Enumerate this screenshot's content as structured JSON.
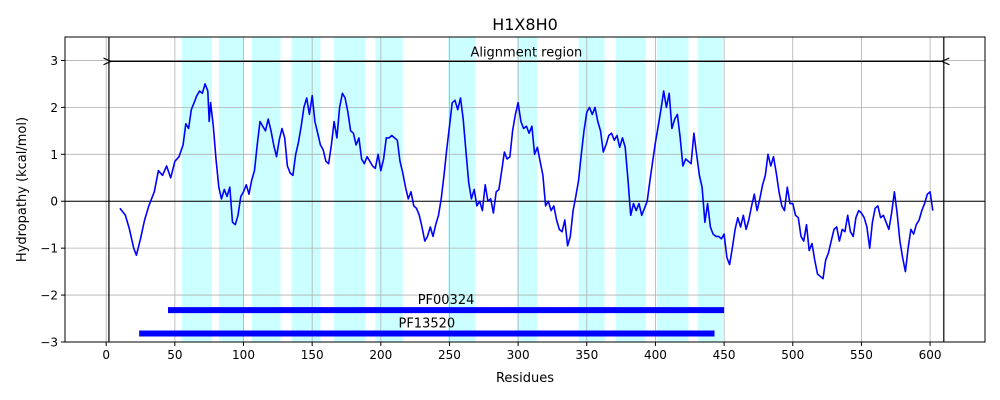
{
  "chart_data": {
    "type": "line",
    "title": "H1X8H0",
    "xlabel": "Residues",
    "ylabel": "Hydropathy (kcal/mol)",
    "xlim": [
      -30,
      640
    ],
    "ylim": [
      -3,
      3.5
    ],
    "xticks": [
      0,
      50,
      100,
      150,
      200,
      250,
      300,
      350,
      400,
      450,
      500,
      550,
      600
    ],
    "yticks": [
      -3,
      -2,
      -1,
      0,
      1,
      2,
      3
    ],
    "grid": true,
    "colors": {
      "line": "#0000ff",
      "tm_band": "#ccffff",
      "domain_bar": "#0000ff",
      "vline": "#000000",
      "zero_line": "#000000"
    },
    "vlines": [
      2,
      610
    ],
    "alignment_region": {
      "label": "Alignment region",
      "start": 2,
      "end": 610,
      "y": 2.98
    },
    "tm_segments": [
      [
        55,
        77
      ],
      [
        82,
        100
      ],
      [
        106,
        127
      ],
      [
        135,
        156
      ],
      [
        166,
        189
      ],
      [
        196,
        216
      ],
      [
        249,
        269
      ],
      [
        299,
        314
      ],
      [
        344,
        363
      ],
      [
        371,
        393
      ],
      [
        401,
        424
      ],
      [
        431,
        449
      ]
    ],
    "domains": [
      {
        "label": "PF00324",
        "start": 45,
        "end": 450,
        "y": -2.32
      },
      {
        "label": "PF13520",
        "start": 24,
        "end": 443,
        "y": -2.82
      }
    ],
    "series": [
      {
        "points": [
          [
            10,
            -0.15
          ],
          [
            14,
            -0.3
          ],
          [
            17,
            -0.6
          ],
          [
            20,
            -1.0
          ],
          [
            22,
            -1.15
          ],
          [
            25,
            -0.8
          ],
          [
            28,
            -0.4
          ],
          [
            31,
            -0.1
          ],
          [
            35,
            0.2
          ],
          [
            38,
            0.65
          ],
          [
            41,
            0.55
          ],
          [
            44,
            0.75
          ],
          [
            47,
            0.5
          ],
          [
            50,
            0.85
          ],
          [
            53,
            0.95
          ],
          [
            56,
            1.2
          ],
          [
            58,
            1.65
          ],
          [
            60,
            1.55
          ],
          [
            62,
            1.95
          ],
          [
            64,
            2.1
          ],
          [
            66,
            2.25
          ],
          [
            68,
            2.35
          ],
          [
            70,
            2.3
          ],
          [
            72,
            2.5
          ],
          [
            74,
            2.35
          ],
          [
            75,
            1.7
          ],
          [
            76,
            2.1
          ],
          [
            78,
            1.6
          ],
          [
            80,
            0.9
          ],
          [
            82,
            0.3
          ],
          [
            84,
            0.05
          ],
          [
            86,
            0.25
          ],
          [
            88,
            0.1
          ],
          [
            90,
            0.3
          ],
          [
            92,
            -0.45
          ],
          [
            94,
            -0.5
          ],
          [
            96,
            -0.3
          ],
          [
            98,
            0.1
          ],
          [
            100,
            0.2
          ],
          [
            102,
            0.35
          ],
          [
            104,
            0.15
          ],
          [
            106,
            0.45
          ],
          [
            108,
            0.65
          ],
          [
            110,
            1.2
          ],
          [
            112,
            1.7
          ],
          [
            114,
            1.6
          ],
          [
            116,
            1.5
          ],
          [
            118,
            1.75
          ],
          [
            120,
            1.5
          ],
          [
            122,
            1.2
          ],
          [
            124,
            0.95
          ],
          [
            126,
            1.3
          ],
          [
            128,
            1.55
          ],
          [
            130,
            1.35
          ],
          [
            132,
            0.75
          ],
          [
            134,
            0.6
          ],
          [
            136,
            0.55
          ],
          [
            138,
            1.0
          ],
          [
            140,
            1.25
          ],
          [
            142,
            1.6
          ],
          [
            144,
            2.0
          ],
          [
            146,
            2.2
          ],
          [
            148,
            1.85
          ],
          [
            150,
            2.25
          ],
          [
            152,
            1.7
          ],
          [
            154,
            1.45
          ],
          [
            156,
            1.2
          ],
          [
            158,
            1.1
          ],
          [
            160,
            0.85
          ],
          [
            162,
            0.8
          ],
          [
            164,
            1.2
          ],
          [
            166,
            1.7
          ],
          [
            168,
            1.35
          ],
          [
            170,
            2.0
          ],
          [
            172,
            2.3
          ],
          [
            174,
            2.2
          ],
          [
            176,
            1.9
          ],
          [
            178,
            1.5
          ],
          [
            180,
            1.45
          ],
          [
            182,
            1.2
          ],
          [
            184,
            1.35
          ],
          [
            186,
            0.9
          ],
          [
            188,
            0.8
          ],
          [
            190,
            0.95
          ],
          [
            192,
            0.85
          ],
          [
            194,
            0.75
          ],
          [
            196,
            0.7
          ],
          [
            198,
            1.0
          ],
          [
            200,
            0.65
          ],
          [
            202,
            0.9
          ],
          [
            204,
            1.35
          ],
          [
            206,
            1.35
          ],
          [
            208,
            1.4
          ],
          [
            210,
            1.35
          ],
          [
            212,
            1.3
          ],
          [
            214,
            0.85
          ],
          [
            216,
            0.6
          ],
          [
            218,
            0.3
          ],
          [
            220,
            0.05
          ],
          [
            222,
            0.2
          ],
          [
            224,
            -0.1
          ],
          [
            226,
            -0.15
          ],
          [
            228,
            -0.3
          ],
          [
            230,
            -0.55
          ],
          [
            232,
            -0.85
          ],
          [
            234,
            -0.75
          ],
          [
            236,
            -0.55
          ],
          [
            238,
            -0.75
          ],
          [
            240,
            -0.5
          ],
          [
            242,
            -0.3
          ],
          [
            244,
            0.05
          ],
          [
            246,
            0.55
          ],
          [
            248,
            1.1
          ],
          [
            250,
            1.6
          ],
          [
            252,
            2.1
          ],
          [
            254,
            2.15
          ],
          [
            256,
            1.95
          ],
          [
            258,
            2.2
          ],
          [
            260,
            1.75
          ],
          [
            262,
            1.05
          ],
          [
            264,
            0.4
          ],
          [
            266,
            0.05
          ],
          [
            268,
            0.25
          ],
          [
            270,
            -0.1
          ],
          [
            272,
            0.0
          ],
          [
            274,
            -0.2
          ],
          [
            276,
            0.35
          ],
          [
            278,
            0.0
          ],
          [
            280,
            0.05
          ],
          [
            282,
            -0.25
          ],
          [
            284,
            0.2
          ],
          [
            286,
            0.25
          ],
          [
            288,
            0.65
          ],
          [
            290,
            1.05
          ],
          [
            292,
            0.9
          ],
          [
            294,
            0.95
          ],
          [
            296,
            1.5
          ],
          [
            298,
            1.85
          ],
          [
            300,
            2.1
          ],
          [
            302,
            1.7
          ],
          [
            304,
            1.55
          ],
          [
            306,
            1.6
          ],
          [
            308,
            1.45
          ],
          [
            310,
            1.6
          ],
          [
            312,
            1.0
          ],
          [
            314,
            1.15
          ],
          [
            316,
            0.85
          ],
          [
            318,
            0.55
          ],
          [
            320,
            -0.1
          ],
          [
            322,
            0.0
          ],
          [
            324,
            -0.2
          ],
          [
            326,
            -0.1
          ],
          [
            328,
            -0.4
          ],
          [
            330,
            -0.6
          ],
          [
            332,
            -0.65
          ],
          [
            334,
            -0.4
          ],
          [
            336,
            -0.95
          ],
          [
            338,
            -0.75
          ],
          [
            340,
            -0.2
          ],
          [
            342,
            0.1
          ],
          [
            344,
            0.45
          ],
          [
            346,
            1.0
          ],
          [
            348,
            1.5
          ],
          [
            350,
            1.9
          ],
          [
            352,
            2.0
          ],
          [
            354,
            1.85
          ],
          [
            356,
            2.0
          ],
          [
            358,
            1.7
          ],
          [
            360,
            1.5
          ],
          [
            362,
            1.05
          ],
          [
            364,
            1.2
          ],
          [
            366,
            1.4
          ],
          [
            368,
            1.45
          ],
          [
            370,
            1.3
          ],
          [
            372,
            1.4
          ],
          [
            374,
            1.15
          ],
          [
            376,
            1.35
          ],
          [
            378,
            1.15
          ],
          [
            380,
            0.45
          ],
          [
            382,
            -0.3
          ],
          [
            384,
            -0.05
          ],
          [
            386,
            -0.2
          ],
          [
            388,
            -0.05
          ],
          [
            390,
            -0.3
          ],
          [
            392,
            -0.15
          ],
          [
            394,
            0.0
          ],
          [
            396,
            0.45
          ],
          [
            398,
            0.85
          ],
          [
            400,
            1.25
          ],
          [
            402,
            1.6
          ],
          [
            404,
            1.95
          ],
          [
            406,
            2.35
          ],
          [
            408,
            2.0
          ],
          [
            410,
            2.3
          ],
          [
            412,
            1.55
          ],
          [
            414,
            1.75
          ],
          [
            416,
            1.85
          ],
          [
            418,
            1.35
          ],
          [
            420,
            0.75
          ],
          [
            422,
            0.9
          ],
          [
            424,
            0.85
          ],
          [
            426,
            0.8
          ],
          [
            428,
            1.45
          ],
          [
            430,
            1.0
          ],
          [
            432,
            0.55
          ],
          [
            434,
            0.3
          ],
          [
            436,
            -0.45
          ],
          [
            438,
            -0.05
          ],
          [
            440,
            -0.55
          ],
          [
            442,
            -0.7
          ],
          [
            444,
            -0.75
          ],
          [
            446,
            -0.75
          ],
          [
            448,
            -0.8
          ],
          [
            450,
            -0.7
          ],
          [
            452,
            -1.2
          ],
          [
            454,
            -1.35
          ],
          [
            456,
            -1.0
          ],
          [
            458,
            -0.6
          ],
          [
            460,
            -0.35
          ],
          [
            462,
            -0.55
          ],
          [
            464,
            -0.3
          ],
          [
            466,
            -0.6
          ],
          [
            468,
            -0.4
          ],
          [
            470,
            -0.1
          ],
          [
            472,
            0.15
          ],
          [
            474,
            -0.2
          ],
          [
            476,
            0.05
          ],
          [
            478,
            0.35
          ],
          [
            480,
            0.55
          ],
          [
            482,
            1.0
          ],
          [
            484,
            0.75
          ],
          [
            486,
            0.95
          ],
          [
            488,
            0.6
          ],
          [
            490,
            0.2
          ],
          [
            492,
            -0.1
          ],
          [
            494,
            -0.2
          ],
          [
            496,
            0.3
          ],
          [
            498,
            -0.05
          ],
          [
            500,
            -0.05
          ],
          [
            502,
            -0.3
          ],
          [
            504,
            -0.35
          ],
          [
            506,
            -0.75
          ],
          [
            508,
            -0.85
          ],
          [
            510,
            -0.5
          ],
          [
            512,
            -1.05
          ],
          [
            514,
            -0.9
          ],
          [
            516,
            -1.25
          ],
          [
            518,
            -1.55
          ],
          [
            520,
            -1.6
          ],
          [
            522,
            -1.65
          ],
          [
            524,
            -1.25
          ],
          [
            526,
            -1.1
          ],
          [
            528,
            -0.85
          ],
          [
            530,
            -0.6
          ],
          [
            532,
            -0.55
          ],
          [
            534,
            -0.85
          ],
          [
            536,
            -0.6
          ],
          [
            538,
            -0.65
          ],
          [
            540,
            -0.3
          ],
          [
            542,
            -0.65
          ],
          [
            544,
            -0.75
          ],
          [
            546,
            -0.35
          ],
          [
            548,
            -0.2
          ],
          [
            550,
            -0.25
          ],
          [
            552,
            -0.35
          ],
          [
            554,
            -0.55
          ],
          [
            556,
            -1.0
          ],
          [
            558,
            -0.45
          ],
          [
            560,
            -0.15
          ],
          [
            562,
            -0.1
          ],
          [
            564,
            -0.35
          ],
          [
            566,
            -0.3
          ],
          [
            568,
            -0.45
          ],
          [
            570,
            -0.6
          ],
          [
            572,
            -0.25
          ],
          [
            574,
            0.2
          ],
          [
            576,
            -0.25
          ],
          [
            578,
            -0.85
          ],
          [
            580,
            -1.2
          ],
          [
            582,
            -1.5
          ],
          [
            584,
            -1.0
          ],
          [
            586,
            -0.6
          ],
          [
            588,
            -0.7
          ],
          [
            590,
            -0.5
          ],
          [
            592,
            -0.4
          ],
          [
            594,
            -0.2
          ],
          [
            596,
            -0.05
          ],
          [
            598,
            0.15
          ],
          [
            600,
            0.2
          ],
          [
            602,
            -0.2
          ]
        ]
      }
    ]
  }
}
